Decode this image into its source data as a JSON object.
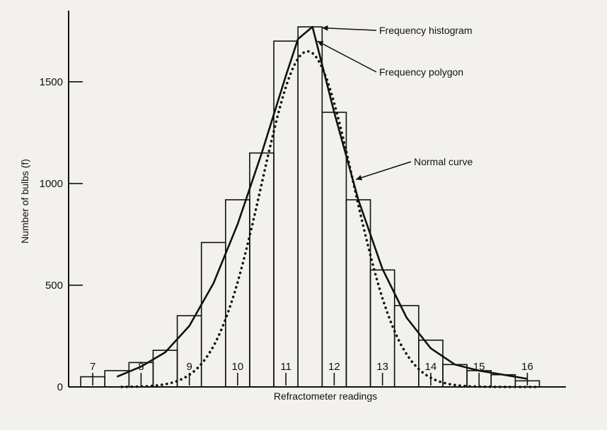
{
  "chart_data": {
    "type": "bar",
    "xlabel": "Refractometer readings",
    "ylabel": "Number of bulbs (f)",
    "xlim": [
      6.5,
      16.8
    ],
    "ylim": [
      0,
      1850
    ],
    "x_ticks": [
      7,
      8,
      9,
      10,
      11,
      12,
      13,
      14,
      15,
      16
    ],
    "x_tick_labels": [
      "7",
      "8",
      "9",
      "10",
      "11",
      "12",
      "13",
      "14",
      "15",
      "16"
    ],
    "y_ticks": [
      0,
      500,
      1000,
      1500
    ],
    "y_tick_labels": [
      "0",
      "500",
      "1000",
      "1500"
    ],
    "bin_width": 0.5,
    "histogram": {
      "name": "Frequency histogram",
      "bin_centers": [
        7,
        7.5,
        8,
        8.5,
        9,
        9.5,
        10,
        10.5,
        11,
        11.5,
        12,
        12.5,
        13,
        13.5,
        14,
        14.5,
        15,
        15.5,
        16
      ],
      "values": [
        50,
        80,
        120,
        180,
        350,
        710,
        920,
        1150,
        1700,
        1770,
        1350,
        920,
        575,
        400,
        230,
        110,
        80,
        60,
        30
      ]
    },
    "polygon": {
      "name": "Frequency polygon",
      "x": [
        7.5,
        8,
        8.5,
        9,
        9.5,
        10,
        10.5,
        11,
        11.25,
        11.55,
        12,
        12.5,
        13,
        13.5,
        14,
        14.5,
        15,
        15.5,
        16
      ],
      "y": [
        50,
        100,
        170,
        300,
        510,
        800,
        1150,
        1530,
        1710,
        1770,
        1350,
        920,
        580,
        340,
        190,
        110,
        80,
        60,
        40
      ]
    },
    "normal_curve": {
      "name": "Normal curve",
      "mean": 11.45,
      "sd": 0.95,
      "peak": 1650
    },
    "annotations": [
      "Frequency histogram",
      "Frequency polygon",
      "Normal curve"
    ],
    "grid": false,
    "legend": "none"
  },
  "colors": {
    "ink": "#111111",
    "background": "#f3f1ee"
  }
}
